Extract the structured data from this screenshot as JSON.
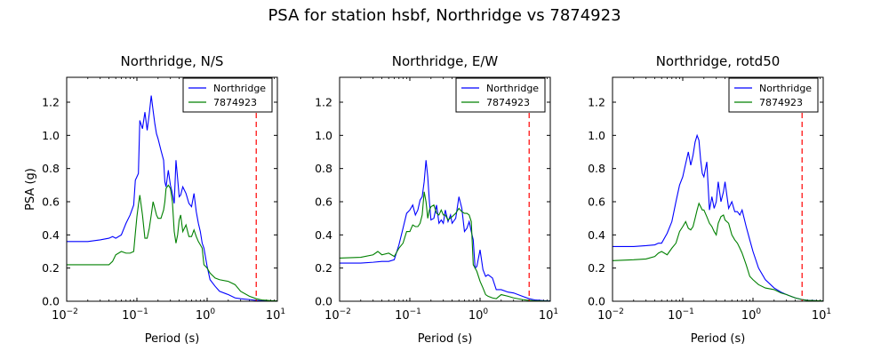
{
  "suptitle": "PSA for station hsbf, Northridge vs 7874923",
  "colors": {
    "series1": "#0000ff",
    "series2": "#008000",
    "cutoff": "#ff0000"
  },
  "chart_data": [
    {
      "type": "line",
      "title": "Northridge, N/S",
      "xlabel": "Period (s)",
      "ylabel": "PSA (g)",
      "xscale": "log",
      "xlim": [
        0.01,
        10
      ],
      "ylim": [
        0.0,
        1.35
      ],
      "xtick_labels": [
        "10^-2",
        "10^-1",
        "10^0",
        "10^1"
      ],
      "ytick_labels": [
        "0.0",
        "0.2",
        "0.4",
        "0.6",
        "0.8",
        "1.0",
        "1.2"
      ],
      "legend_position": "top-right",
      "cutoff_period": 5.0,
      "series": [
        {
          "name": "Northridge",
          "x": [
            0.01,
            0.02,
            0.03,
            0.04,
            0.045,
            0.05,
            0.06,
            0.07,
            0.08,
            0.09,
            0.095,
            0.1,
            0.105,
            0.11,
            0.12,
            0.13,
            0.14,
            0.15,
            0.16,
            0.17,
            0.18,
            0.19,
            0.2,
            0.22,
            0.24,
            0.25,
            0.26,
            0.28,
            0.3,
            0.32,
            0.34,
            0.36,
            0.38,
            0.4,
            0.42,
            0.45,
            0.5,
            0.55,
            0.6,
            0.65,
            0.7,
            0.75,
            0.8,
            0.85,
            0.9,
            1.0,
            1.1,
            1.3,
            1.5,
            2.0,
            2.5,
            3.0,
            4.0,
            5.0,
            6.0,
            8.0,
            10.0
          ],
          "y": [
            0.36,
            0.36,
            0.37,
            0.38,
            0.39,
            0.38,
            0.4,
            0.47,
            0.52,
            0.58,
            0.73,
            0.75,
            0.77,
            1.09,
            1.04,
            1.14,
            1.03,
            1.13,
            1.24,
            1.15,
            1.07,
            1.01,
            0.98,
            0.91,
            0.85,
            0.72,
            0.69,
            0.79,
            0.7,
            0.65,
            0.59,
            0.85,
            0.74,
            0.63,
            0.64,
            0.69,
            0.65,
            0.59,
            0.57,
            0.65,
            0.54,
            0.47,
            0.42,
            0.35,
            0.32,
            0.21,
            0.13,
            0.09,
            0.06,
            0.04,
            0.02,
            0.015,
            0.01,
            0.005,
            0.003,
            0.002,
            0.001
          ]
        },
        {
          "name": "7874923",
          "x": [
            0.01,
            0.02,
            0.03,
            0.04,
            0.045,
            0.05,
            0.06,
            0.07,
            0.08,
            0.09,
            0.095,
            0.1,
            0.105,
            0.11,
            0.12,
            0.13,
            0.14,
            0.15,
            0.16,
            0.17,
            0.18,
            0.19,
            0.2,
            0.22,
            0.24,
            0.25,
            0.26,
            0.28,
            0.3,
            0.32,
            0.34,
            0.36,
            0.38,
            0.4,
            0.42,
            0.45,
            0.5,
            0.55,
            0.6,
            0.65,
            0.7,
            0.75,
            0.8,
            0.85,
            0.9,
            1.0,
            1.1,
            1.3,
            1.5,
            2.0,
            2.5,
            3.0,
            4.0,
            5.0,
            6.0,
            8.0,
            10.0
          ],
          "y": [
            0.22,
            0.22,
            0.22,
            0.22,
            0.24,
            0.28,
            0.3,
            0.29,
            0.29,
            0.3,
            0.41,
            0.51,
            0.58,
            0.64,
            0.52,
            0.38,
            0.38,
            0.44,
            0.52,
            0.6,
            0.56,
            0.52,
            0.5,
            0.5,
            0.55,
            0.6,
            0.68,
            0.7,
            0.68,
            0.6,
            0.42,
            0.35,
            0.4,
            0.49,
            0.52,
            0.42,
            0.46,
            0.39,
            0.39,
            0.43,
            0.39,
            0.36,
            0.34,
            0.32,
            0.22,
            0.2,
            0.17,
            0.14,
            0.13,
            0.12,
            0.1,
            0.06,
            0.03,
            0.015,
            0.008,
            0.004,
            0.002
          ]
        }
      ]
    },
    {
      "type": "line",
      "title": "Northridge, E/W",
      "xlabel": "Period (s)",
      "ylabel": "",
      "xscale": "log",
      "xlim": [
        0.01,
        10
      ],
      "ylim": [
        0.0,
        1.35
      ],
      "xtick_labels": [
        "10^-2",
        "10^-1",
        "10^0",
        "10^1"
      ],
      "ytick_labels": [
        "0.0",
        "0.2",
        "0.4",
        "0.6",
        "0.8",
        "1.0",
        "1.2"
      ],
      "legend_position": "top-right",
      "cutoff_period": 5.0,
      "series": [
        {
          "name": "Northridge",
          "x": [
            0.01,
            0.02,
            0.03,
            0.04,
            0.05,
            0.06,
            0.07,
            0.08,
            0.09,
            0.1,
            0.11,
            0.12,
            0.13,
            0.14,
            0.15,
            0.16,
            0.17,
            0.18,
            0.19,
            0.2,
            0.22,
            0.24,
            0.26,
            0.28,
            0.3,
            0.32,
            0.35,
            0.38,
            0.4,
            0.45,
            0.5,
            0.55,
            0.6,
            0.65,
            0.7,
            0.75,
            0.8,
            0.85,
            0.9,
            1.0,
            1.1,
            1.2,
            1.3,
            1.5,
            1.7,
            2.0,
            2.5,
            3.0,
            4.0,
            5.0,
            6.0,
            8.0,
            10.0
          ],
          "y": [
            0.23,
            0.23,
            0.235,
            0.24,
            0.24,
            0.25,
            0.34,
            0.44,
            0.53,
            0.55,
            0.58,
            0.52,
            0.55,
            0.61,
            0.63,
            0.72,
            0.85,
            0.75,
            0.6,
            0.49,
            0.5,
            0.58,
            0.47,
            0.49,
            0.47,
            0.55,
            0.48,
            0.52,
            0.47,
            0.5,
            0.63,
            0.56,
            0.42,
            0.44,
            0.48,
            0.42,
            0.37,
            0.2,
            0.21,
            0.31,
            0.19,
            0.15,
            0.16,
            0.14,
            0.07,
            0.07,
            0.055,
            0.05,
            0.03,
            0.015,
            0.008,
            0.004,
            0.002
          ]
        },
        {
          "name": "7874923",
          "x": [
            0.01,
            0.02,
            0.03,
            0.035,
            0.04,
            0.05,
            0.06,
            0.07,
            0.08,
            0.09,
            0.1,
            0.11,
            0.12,
            0.13,
            0.14,
            0.15,
            0.16,
            0.17,
            0.18,
            0.19,
            0.2,
            0.22,
            0.24,
            0.26,
            0.28,
            0.3,
            0.32,
            0.35,
            0.4,
            0.45,
            0.5,
            0.55,
            0.6,
            0.65,
            0.7,
            0.75,
            0.8,
            0.85,
            0.9,
            1.0,
            1.1,
            1.2,
            1.3,
            1.5,
            1.7,
            2.0,
            2.5,
            3.0,
            4.0,
            5.0,
            6.0,
            8.0,
            10.0
          ],
          "y": [
            0.26,
            0.265,
            0.28,
            0.3,
            0.28,
            0.29,
            0.27,
            0.32,
            0.35,
            0.42,
            0.42,
            0.46,
            0.45,
            0.45,
            0.47,
            0.52,
            0.66,
            0.6,
            0.5,
            0.55,
            0.57,
            0.58,
            0.53,
            0.52,
            0.55,
            0.52,
            0.52,
            0.49,
            0.51,
            0.53,
            0.56,
            0.54,
            0.53,
            0.53,
            0.52,
            0.48,
            0.22,
            0.2,
            0.18,
            0.12,
            0.08,
            0.04,
            0.03,
            0.02,
            0.015,
            0.04,
            0.03,
            0.02,
            0.01,
            0.005,
            0.003,
            0.002,
            0.001
          ]
        }
      ]
    },
    {
      "type": "line",
      "title": "Northridge, rotd50",
      "xlabel": "Period (s)",
      "ylabel": "",
      "xscale": "log",
      "xlim": [
        0.01,
        10
      ],
      "ylim": [
        0.0,
        1.35
      ],
      "xtick_labels": [
        "10^-2",
        "10^-1",
        "10^0",
        "10^1"
      ],
      "ytick_labels": [
        "0.0",
        "0.2",
        "0.4",
        "0.6",
        "0.8",
        "1.0",
        "1.2"
      ],
      "legend_position": "top-right",
      "cutoff_period": 5.0,
      "series": [
        {
          "name": "Northridge",
          "x": [
            0.01,
            0.02,
            0.03,
            0.04,
            0.045,
            0.05,
            0.06,
            0.07,
            0.08,
            0.09,
            0.1,
            0.11,
            0.12,
            0.13,
            0.14,
            0.15,
            0.16,
            0.17,
            0.18,
            0.19,
            0.2,
            0.22,
            0.24,
            0.26,
            0.28,
            0.3,
            0.32,
            0.35,
            0.38,
            0.4,
            0.45,
            0.5,
            0.55,
            0.6,
            0.65,
            0.7,
            0.8,
            0.9,
            1.0,
            1.2,
            1.5,
            2.0,
            2.5,
            3.0,
            4.0,
            5.0,
            6.0,
            8.0,
            10.0
          ],
          "y": [
            0.33,
            0.33,
            0.335,
            0.34,
            0.35,
            0.35,
            0.41,
            0.48,
            0.6,
            0.7,
            0.75,
            0.83,
            0.9,
            0.82,
            0.88,
            0.96,
            1.0,
            0.97,
            0.85,
            0.77,
            0.75,
            0.84,
            0.55,
            0.63,
            0.56,
            0.6,
            0.72,
            0.6,
            0.66,
            0.72,
            0.56,
            0.6,
            0.54,
            0.54,
            0.52,
            0.55,
            0.45,
            0.37,
            0.3,
            0.2,
            0.13,
            0.08,
            0.055,
            0.04,
            0.02,
            0.01,
            0.006,
            0.003,
            0.002
          ]
        },
        {
          "name": "7874923",
          "x": [
            0.01,
            0.02,
            0.03,
            0.04,
            0.045,
            0.05,
            0.06,
            0.07,
            0.08,
            0.09,
            0.1,
            0.11,
            0.12,
            0.13,
            0.14,
            0.15,
            0.16,
            0.17,
            0.18,
            0.19,
            0.2,
            0.22,
            0.24,
            0.26,
            0.28,
            0.3,
            0.32,
            0.35,
            0.38,
            0.4,
            0.45,
            0.5,
            0.55,
            0.6,
            0.65,
            0.7,
            0.8,
            0.9,
            1.0,
            1.2,
            1.5,
            2.0,
            2.5,
            3.0,
            4.0,
            5.0,
            6.0,
            8.0,
            10.0
          ],
          "y": [
            0.245,
            0.25,
            0.255,
            0.27,
            0.29,
            0.3,
            0.28,
            0.32,
            0.35,
            0.42,
            0.45,
            0.48,
            0.44,
            0.43,
            0.45,
            0.5,
            0.55,
            0.59,
            0.57,
            0.55,
            0.55,
            0.51,
            0.47,
            0.45,
            0.42,
            0.4,
            0.47,
            0.51,
            0.52,
            0.49,
            0.47,
            0.4,
            0.37,
            0.35,
            0.32,
            0.29,
            0.22,
            0.15,
            0.13,
            0.1,
            0.08,
            0.07,
            0.05,
            0.04,
            0.02,
            0.01,
            0.005,
            0.003,
            0.002
          ]
        }
      ]
    }
  ]
}
